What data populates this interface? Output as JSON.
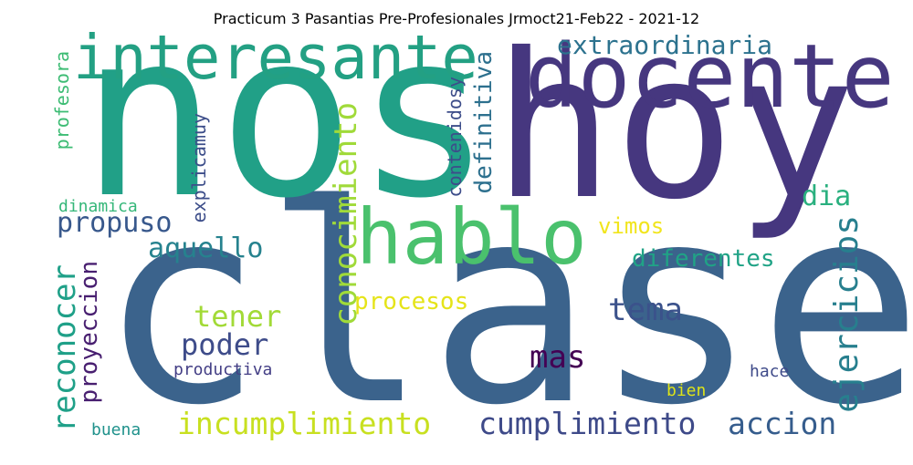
{
  "title": "Practicum 3 Pasantias Pre-Profesionales Jrmoct21-Feb22 - 2021-12",
  "words": [
    {
      "text": "clase",
      "color": "#3b638c",
      "orientation": "horizontal"
    },
    {
      "text": "nos",
      "color": "#21a087",
      "orientation": "horizontal"
    },
    {
      "text": "hoy",
      "color": "#46377f",
      "orientation": "horizontal"
    },
    {
      "text": "docente",
      "color": "#46377f",
      "orientation": "horizontal"
    },
    {
      "text": "interesante",
      "color": "#23a083",
      "orientation": "horizontal"
    },
    {
      "text": "hablo",
      "color": "#4ac16d",
      "orientation": "horizontal"
    },
    {
      "text": "conocimiento",
      "color": "#a0da39",
      "orientation": "vertical"
    },
    {
      "text": "ejercicios",
      "color": "#277f8e",
      "orientation": "vertical"
    },
    {
      "text": "incumplimiento",
      "color": "#c8e020",
      "orientation": "horizontal"
    },
    {
      "text": "cumplimiento",
      "color": "#3e4a89",
      "orientation": "horizontal"
    },
    {
      "text": "accion",
      "color": "#365d8d",
      "orientation": "horizontal"
    },
    {
      "text": "reconocer",
      "color": "#1fa088",
      "orientation": "vertical"
    },
    {
      "text": "proyeccion",
      "color": "#481f70",
      "orientation": "vertical"
    },
    {
      "text": "extraordinaria",
      "color": "#2c728e",
      "orientation": "horizontal"
    },
    {
      "text": "definitiva",
      "color": "#2d708e",
      "orientation": "vertical"
    },
    {
      "text": "propuso",
      "color": "#38588c",
      "orientation": "horizontal"
    },
    {
      "text": "aquello",
      "color": "#26828e",
      "orientation": "horizontal"
    },
    {
      "text": "poder",
      "color": "#3e4c8a",
      "orientation": "horizontal"
    },
    {
      "text": "tener",
      "color": "#a2da37",
      "orientation": "horizontal"
    },
    {
      "text": "tema",
      "color": "#3b528b",
      "orientation": "horizontal"
    },
    {
      "text": "mas",
      "color": "#440154",
      "orientation": "horizontal"
    },
    {
      "text": "dia",
      "color": "#2ab07f",
      "orientation": "horizontal"
    },
    {
      "text": "procesos",
      "color": "#e5e419",
      "orientation": "horizontal"
    },
    {
      "text": "diferentes",
      "color": "#20a386",
      "orientation": "horizontal"
    },
    {
      "text": "vimos",
      "color": "#f1e51d",
      "orientation": "horizontal"
    },
    {
      "text": "contenidosy",
      "color": "#3d4d8a",
      "orientation": "vertical"
    },
    {
      "text": "explicamuy",
      "color": "#3d4e8a",
      "orientation": "vertical"
    },
    {
      "text": "profesora",
      "color": "#3dbc74",
      "orientation": "vertical"
    },
    {
      "text": "dinamica",
      "color": "#35b779",
      "orientation": "horizontal"
    },
    {
      "text": "productiva",
      "color": "#433e85",
      "orientation": "horizontal"
    },
    {
      "text": "hace",
      "color": "#3e4a89",
      "orientation": "horizontal"
    },
    {
      "text": "bien",
      "color": "#dde318",
      "orientation": "horizontal"
    },
    {
      "text": "buena",
      "color": "#20928c",
      "orientation": "horizontal"
    }
  ]
}
